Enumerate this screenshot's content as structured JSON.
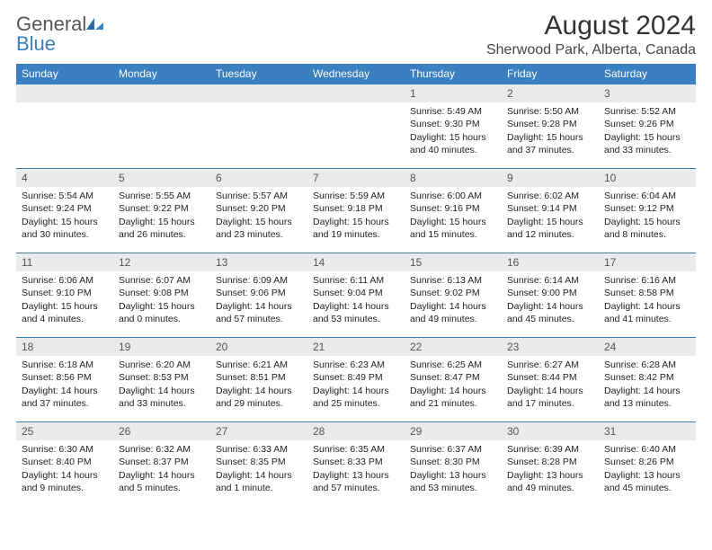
{
  "colors": {
    "header_bg": "#3a7fbf",
    "header_text": "#ffffff",
    "daynum_bg": "#e9eaec",
    "daynum_border": "#3a7fbf",
    "body_text": "#222222",
    "title_text": "#333333",
    "logo_gray": "#555555",
    "logo_blue": "#3a7fbf",
    "page_bg": "#ffffff"
  },
  "logo": {
    "word1": "General",
    "word2": "Blue"
  },
  "title": "August 2024",
  "location": "Sherwood Park, Alberta, Canada",
  "weekdays": [
    "Sunday",
    "Monday",
    "Tuesday",
    "Wednesday",
    "Thursday",
    "Friday",
    "Saturday"
  ],
  "weeks": [
    [
      {
        "blank": true
      },
      {
        "blank": true
      },
      {
        "blank": true
      },
      {
        "blank": true
      },
      {
        "day": "1",
        "sunrise": "Sunrise: 5:49 AM",
        "sunset": "Sunset: 9:30 PM",
        "daylight": "Daylight: 15 hours and 40 minutes."
      },
      {
        "day": "2",
        "sunrise": "Sunrise: 5:50 AM",
        "sunset": "Sunset: 9:28 PM",
        "daylight": "Daylight: 15 hours and 37 minutes."
      },
      {
        "day": "3",
        "sunrise": "Sunrise: 5:52 AM",
        "sunset": "Sunset: 9:26 PM",
        "daylight": "Daylight: 15 hours and 33 minutes."
      }
    ],
    [
      {
        "day": "4",
        "sunrise": "Sunrise: 5:54 AM",
        "sunset": "Sunset: 9:24 PM",
        "daylight": "Daylight: 15 hours and 30 minutes."
      },
      {
        "day": "5",
        "sunrise": "Sunrise: 5:55 AM",
        "sunset": "Sunset: 9:22 PM",
        "daylight": "Daylight: 15 hours and 26 minutes."
      },
      {
        "day": "6",
        "sunrise": "Sunrise: 5:57 AM",
        "sunset": "Sunset: 9:20 PM",
        "daylight": "Daylight: 15 hours and 23 minutes."
      },
      {
        "day": "7",
        "sunrise": "Sunrise: 5:59 AM",
        "sunset": "Sunset: 9:18 PM",
        "daylight": "Daylight: 15 hours and 19 minutes."
      },
      {
        "day": "8",
        "sunrise": "Sunrise: 6:00 AM",
        "sunset": "Sunset: 9:16 PM",
        "daylight": "Daylight: 15 hours and 15 minutes."
      },
      {
        "day": "9",
        "sunrise": "Sunrise: 6:02 AM",
        "sunset": "Sunset: 9:14 PM",
        "daylight": "Daylight: 15 hours and 12 minutes."
      },
      {
        "day": "10",
        "sunrise": "Sunrise: 6:04 AM",
        "sunset": "Sunset: 9:12 PM",
        "daylight": "Daylight: 15 hours and 8 minutes."
      }
    ],
    [
      {
        "day": "11",
        "sunrise": "Sunrise: 6:06 AM",
        "sunset": "Sunset: 9:10 PM",
        "daylight": "Daylight: 15 hours and 4 minutes."
      },
      {
        "day": "12",
        "sunrise": "Sunrise: 6:07 AM",
        "sunset": "Sunset: 9:08 PM",
        "daylight": "Daylight: 15 hours and 0 minutes."
      },
      {
        "day": "13",
        "sunrise": "Sunrise: 6:09 AM",
        "sunset": "Sunset: 9:06 PM",
        "daylight": "Daylight: 14 hours and 57 minutes."
      },
      {
        "day": "14",
        "sunrise": "Sunrise: 6:11 AM",
        "sunset": "Sunset: 9:04 PM",
        "daylight": "Daylight: 14 hours and 53 minutes."
      },
      {
        "day": "15",
        "sunrise": "Sunrise: 6:13 AM",
        "sunset": "Sunset: 9:02 PM",
        "daylight": "Daylight: 14 hours and 49 minutes."
      },
      {
        "day": "16",
        "sunrise": "Sunrise: 6:14 AM",
        "sunset": "Sunset: 9:00 PM",
        "daylight": "Daylight: 14 hours and 45 minutes."
      },
      {
        "day": "17",
        "sunrise": "Sunrise: 6:16 AM",
        "sunset": "Sunset: 8:58 PM",
        "daylight": "Daylight: 14 hours and 41 minutes."
      }
    ],
    [
      {
        "day": "18",
        "sunrise": "Sunrise: 6:18 AM",
        "sunset": "Sunset: 8:56 PM",
        "daylight": "Daylight: 14 hours and 37 minutes."
      },
      {
        "day": "19",
        "sunrise": "Sunrise: 6:20 AM",
        "sunset": "Sunset: 8:53 PM",
        "daylight": "Daylight: 14 hours and 33 minutes."
      },
      {
        "day": "20",
        "sunrise": "Sunrise: 6:21 AM",
        "sunset": "Sunset: 8:51 PM",
        "daylight": "Daylight: 14 hours and 29 minutes."
      },
      {
        "day": "21",
        "sunrise": "Sunrise: 6:23 AM",
        "sunset": "Sunset: 8:49 PM",
        "daylight": "Daylight: 14 hours and 25 minutes."
      },
      {
        "day": "22",
        "sunrise": "Sunrise: 6:25 AM",
        "sunset": "Sunset: 8:47 PM",
        "daylight": "Daylight: 14 hours and 21 minutes."
      },
      {
        "day": "23",
        "sunrise": "Sunrise: 6:27 AM",
        "sunset": "Sunset: 8:44 PM",
        "daylight": "Daylight: 14 hours and 17 minutes."
      },
      {
        "day": "24",
        "sunrise": "Sunrise: 6:28 AM",
        "sunset": "Sunset: 8:42 PM",
        "daylight": "Daylight: 14 hours and 13 minutes."
      }
    ],
    [
      {
        "day": "25",
        "sunrise": "Sunrise: 6:30 AM",
        "sunset": "Sunset: 8:40 PM",
        "daylight": "Daylight: 14 hours and 9 minutes."
      },
      {
        "day": "26",
        "sunrise": "Sunrise: 6:32 AM",
        "sunset": "Sunset: 8:37 PM",
        "daylight": "Daylight: 14 hours and 5 minutes."
      },
      {
        "day": "27",
        "sunrise": "Sunrise: 6:33 AM",
        "sunset": "Sunset: 8:35 PM",
        "daylight": "Daylight: 14 hours and 1 minute."
      },
      {
        "day": "28",
        "sunrise": "Sunrise: 6:35 AM",
        "sunset": "Sunset: 8:33 PM",
        "daylight": "Daylight: 13 hours and 57 minutes."
      },
      {
        "day": "29",
        "sunrise": "Sunrise: 6:37 AM",
        "sunset": "Sunset: 8:30 PM",
        "daylight": "Daylight: 13 hours and 53 minutes."
      },
      {
        "day": "30",
        "sunrise": "Sunrise: 6:39 AM",
        "sunset": "Sunset: 8:28 PM",
        "daylight": "Daylight: 13 hours and 49 minutes."
      },
      {
        "day": "31",
        "sunrise": "Sunrise: 6:40 AM",
        "sunset": "Sunset: 8:26 PM",
        "daylight": "Daylight: 13 hours and 45 minutes."
      }
    ]
  ]
}
